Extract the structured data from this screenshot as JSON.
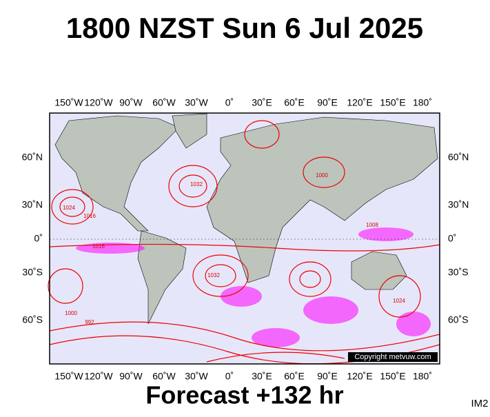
{
  "title": "1800 NZST Sun 6 Jul 2025",
  "map": {
    "top_longitude_labels": [
      "150˚W",
      "120˚W",
      "90˚W",
      "60˚W",
      "30˚W",
      "0˚",
      "30˚E",
      "60˚E",
      "90˚E",
      "120˚E",
      "150˚E",
      "180˚"
    ],
    "bottom_longitude_labels": [
      "150˚W",
      "120˚W",
      "90˚W",
      "60˚W",
      "30˚W",
      "0˚",
      "30˚E",
      "60˚E",
      "90˚E",
      "120˚E",
      "150˚E",
      "180˚"
    ],
    "left_latitude_labels": [
      "60˚N",
      "30˚N",
      "0˚",
      "30˚S",
      "60˚S"
    ],
    "right_latitude_labels": [
      "60˚N",
      "30˚N",
      "0˚",
      "30˚S",
      "60˚S"
    ],
    "isobar_labels": [
      "1024",
      "1016",
      "1016",
      "1032",
      "1000",
      "1008",
      "1000",
      "992",
      "1024",
      "1032"
    ],
    "copyright": "Copyright metvuw.com"
  },
  "footer": {
    "forecast": "Forecast +132 hr",
    "id": "IM2"
  }
}
